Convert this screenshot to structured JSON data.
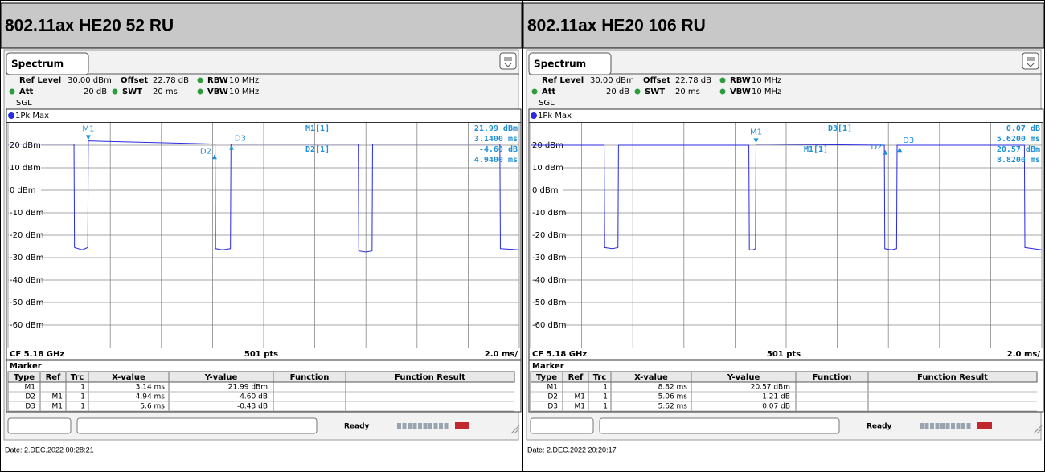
{
  "panels": [
    {
      "title": "802.11ax HE20 52 RU",
      "tab": "Spectrum",
      "settings": [
        [
          {
            "k": "Ref Level",
            "v": "30.00 dBm"
          },
          {
            "k": "Offset",
            "v": "22.78 dB"
          },
          {
            "k": "RBW",
            "v": "10 MHz"
          }
        ],
        [
          {
            "k": "Att",
            "v": "20 dB"
          },
          {
            "k": "SWT",
            "v": "20 ms"
          },
          {
            "k": "VBW",
            "v": "10 MHz"
          }
        ]
      ],
      "mode": "SGL",
      "chart": {
        "type": "line",
        "trace_label": "1Pk Max",
        "xlim": [
          0,
          20
        ],
        "ylim": [
          -70,
          30
        ],
        "xticks": [
          0,
          2,
          4,
          6,
          8,
          10,
          12,
          14,
          16,
          18,
          20
        ],
        "yticks": [
          {
            "value": 20,
            "label": "20 dBm"
          },
          {
            "value": 10,
            "label": "10 dBm"
          },
          {
            "value": 0,
            "label": "0 dBm"
          },
          {
            "value": -10,
            "label": "-10 dBm"
          },
          {
            "value": -20,
            "label": "-20 dBm"
          },
          {
            "value": -30,
            "label": "-30 dBm"
          },
          {
            "value": -40,
            "label": "-40 dBm"
          },
          {
            "value": -50,
            "label": "-50 dBm"
          },
          {
            "value": -60,
            "label": "-60 dBm"
          }
        ],
        "series": [
          {
            "color": "#2a2ae0",
            "x": [
              0,
              2.58,
              2.6,
              2.9,
              3.12,
              3.14,
              8.1,
              8.12,
              8.4,
              8.7,
              8.72,
              13.7,
              13.72,
              14.0,
              14.24,
              14.26,
              19.24,
              19.26,
              20
            ],
            "values": [
              20.5,
              20.5,
              -25.5,
              -26.5,
              -25.5,
              21.9,
              20.5,
              -26,
              -26.5,
              -26,
              20.5,
              20.5,
              -27,
              -27.5,
              -27,
              20.5,
              20.5,
              -26,
              -26.5
            ]
          }
        ],
        "markers": [
          {
            "name": "M1",
            "x": 3.14,
            "y": 21.99
          },
          {
            "name": "D2",
            "ref": "M1",
            "x": 4.94,
            "y": -4.6
          },
          {
            "name": "D3",
            "ref": "M1",
            "x": 5.6,
            "y": -0.43
          }
        ],
        "readout": [
          {
            "label": "M1[1]",
            "value": "21.99 dBm",
            "pos": "3.1400 ms"
          },
          {
            "label": "D2[1]",
            "value": "-4.60 dB",
            "pos": "4.9400 ms"
          }
        ],
        "footer": {
          "left": "CF 5.18 GHz",
          "center": "501 pts",
          "right": "2.0 ms/"
        }
      },
      "marker_table": {
        "title": "Marker",
        "columns": [
          "Type",
          "Ref",
          "Trc",
          "X-value",
          "Y-value",
          "Function",
          "Function Result"
        ],
        "rows": [
          {
            "type": "M1",
            "trc": "1",
            "x": "3.14 ms",
            "y": "21.99 dBm"
          },
          {
            "type": "D2",
            "ref": "M1",
            "trc": "1",
            "x": "4.94 ms",
            "y": "-4.60 dB"
          },
          {
            "type": "D3",
            "ref": "M1",
            "trc": "1",
            "x": "5.6 ms",
            "y": "-0.43 dB"
          }
        ]
      },
      "status": "Ready",
      "date": "Date: 2.DEC.2022  00:28:21"
    },
    {
      "title": "802.11ax HE20 106 RU",
      "tab": "Spectrum",
      "settings": [
        [
          {
            "k": "Ref Level",
            "v": "30.00 dBm"
          },
          {
            "k": "Offset",
            "v": "22.78 dB"
          },
          {
            "k": "RBW",
            "v": "10 MHz"
          }
        ],
        [
          {
            "k": "Att",
            "v": "20 dB"
          },
          {
            "k": "SWT",
            "v": "20 ms"
          },
          {
            "k": "VBW",
            "v": "10 MHz"
          }
        ]
      ],
      "mode": "SGL",
      "chart": {
        "type": "line",
        "trace_label": "1Pk Max",
        "xlim": [
          0,
          20
        ],
        "ylim": [
          -70,
          30
        ],
        "xticks": [
          0,
          2,
          4,
          6,
          8,
          10,
          12,
          14,
          16,
          18,
          20
        ],
        "yticks": [
          {
            "value": 20,
            "label": "20 dBm"
          },
          {
            "value": 10,
            "label": "10 dBm"
          },
          {
            "value": 0,
            "label": "0 dBm"
          },
          {
            "value": -10,
            "label": "-10 dBm"
          },
          {
            "value": -20,
            "label": "-20 dBm"
          },
          {
            "value": -30,
            "label": "-30 dBm"
          },
          {
            "value": -40,
            "label": "-40 dBm"
          },
          {
            "value": -50,
            "label": "-50 dBm"
          },
          {
            "value": -60,
            "label": "-60 dBm"
          }
        ],
        "series": [
          {
            "color": "#2a2ae0",
            "x": [
              0,
              2.88,
              2.9,
              3.2,
              3.42,
              3.44,
              8.54,
              8.56,
              8.7,
              8.8,
              8.82,
              13.84,
              13.86,
              14.1,
              14.32,
              14.34,
              19.32,
              19.34,
              20
            ],
            "values": [
              20,
              20,
              -25.5,
              -26,
              -25.5,
              20,
              20,
              -26.5,
              -26.5,
              -26,
              20.5,
              20,
              -26,
              -26.5,
              -26,
              20,
              20,
              -25.5,
              -26.5
            ]
          }
        ],
        "markers": [
          {
            "name": "M1",
            "x": 8.82,
            "y": 20.57
          },
          {
            "name": "D2",
            "ref": "M1",
            "x": 5.06,
            "y": -1.21
          },
          {
            "name": "D3",
            "ref": "M1",
            "x": 5.62,
            "y": 0.07
          }
        ],
        "readout": [
          {
            "label": "D3[1]",
            "value": "0.07 dB",
            "pos": "5.6200 ms"
          },
          {
            "label": "M1[1]",
            "value": "20.57 dBm",
            "pos": "8.8200 ms"
          }
        ],
        "footer": {
          "left": "CF 5.18 GHz",
          "center": "501 pts",
          "right": "2.0 ms/"
        }
      },
      "marker_table": {
        "title": "Marker",
        "columns": [
          "Type",
          "Ref",
          "Trc",
          "X-value",
          "Y-value",
          "Function",
          "Function Result"
        ],
        "rows": [
          {
            "type": "M1",
            "trc": "1",
            "x": "8.82 ms",
            "y": "20.57 dBm"
          },
          {
            "type": "D2",
            "ref": "M1",
            "trc": "1",
            "x": "5.06 ms",
            "y": "-1.21 dB"
          },
          {
            "type": "D3",
            "ref": "M1",
            "trc": "1",
            "x": "5.62 ms",
            "y": "0.07 dB"
          }
        ]
      },
      "status": "Ready",
      "date": "Date: 2.DEC.2022  20:20:17"
    }
  ]
}
